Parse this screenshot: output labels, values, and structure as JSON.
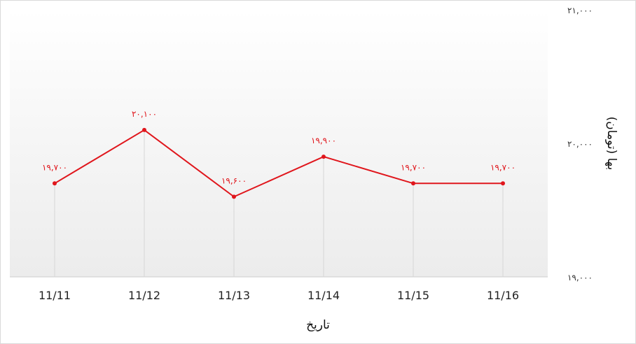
{
  "chart_data": {
    "type": "line",
    "title": "",
    "xlabel": "تاریخ",
    "ylabel": "بها (تومان)",
    "categories": [
      "11/11",
      "11/12",
      "11/13",
      "11/14",
      "11/15",
      "11/16"
    ],
    "series": [
      {
        "values": [
          19700,
          20100,
          19600,
          19900,
          19700,
          19700
        ],
        "labels": [
          "۱۹,۷۰۰",
          "۲۰,۱۰۰",
          "۱۹,۶۰۰",
          "۱۹,۹۰۰",
          "۱۹,۷۰۰",
          "۱۹,۷۰۰"
        ],
        "color": "#e0161c"
      }
    ],
    "ylim": [
      19000,
      21000
    ],
    "yticks": [
      {
        "value": 21000,
        "label": "۲۱,۰۰۰"
      },
      {
        "value": 20000,
        "label": "۲۰,۰۰۰"
      },
      {
        "value": 19000,
        "label": "۱۹,۰۰۰"
      }
    ],
    "grid": "vertical",
    "legend": "none"
  }
}
